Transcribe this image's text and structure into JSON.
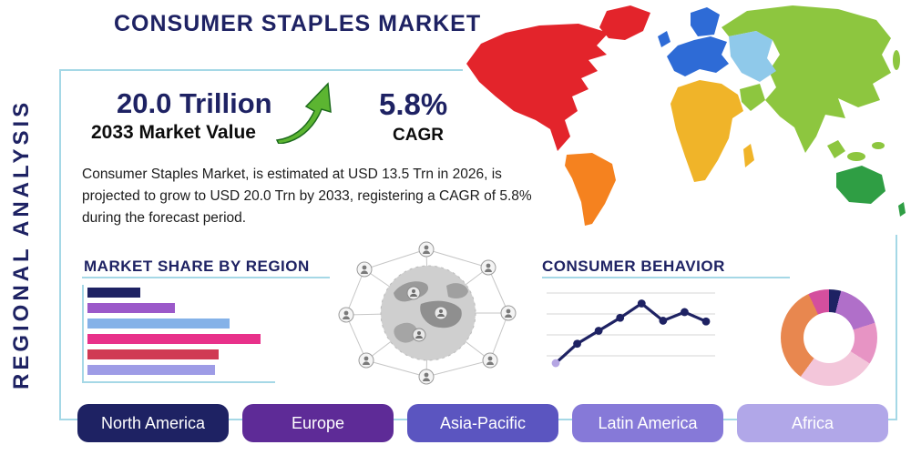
{
  "title": "CONSUMER STAPLES MARKET",
  "vertical_label": "REGIONAL ANALYSIS",
  "colors": {
    "navy": "#1e2263",
    "accent_border": "#a5d8e6",
    "arrow_green": "#5cb531",
    "line_first_point": "#b5a6e3"
  },
  "stats": {
    "market_value": "20.0 Trillion",
    "market_value_label": "2033 Market Value",
    "cagr_value": "5.8%",
    "cagr_label": "CAGR"
  },
  "description": "Consumer Staples Market, is estimated at USD 13.5 Trn in 2026, is projected to grow to USD 20.0 Trn by 2033, registering a CAGR of 5.8% during the forecast period.",
  "sections": {
    "market_share": "MARKET SHARE BY REGION",
    "consumer_behavior": "CONSUMER BEHAVIOR"
  },
  "region_buttons": [
    {
      "label": "North America",
      "color": "#1e2263"
    },
    {
      "label": "Europe",
      "color": "#5e2b97"
    },
    {
      "label": "Asia-Pacific",
      "color": "#5b55c0"
    },
    {
      "label": "Latin America",
      "color": "#8679d8"
    },
    {
      "label": "Africa",
      "color": "#b1a7e8"
    }
  ],
  "map_colors": {
    "north_america": "#e3242b",
    "south_america": "#f5821f",
    "europe": "#2e6bd6",
    "central_asia": "#8fc9ea",
    "asia": "#8dc63f",
    "africa": "#f0b429",
    "australia": "#2f9e44"
  },
  "chart_data": [
    {
      "id": "market-share-by-region",
      "type": "bar",
      "title": "MARKET SHARE BY REGION",
      "orientation": "horizontal",
      "values": [
        29,
        48,
        78,
        95,
        72,
        70
      ],
      "colors": [
        "#1e2263",
        "#9b59c9",
        "#85b2e8",
        "#e8318a",
        "#d03a54",
        "#9e9ce6"
      ],
      "xlim": [
        0,
        100
      ]
    },
    {
      "id": "consumer-behavior-trend",
      "type": "line",
      "title": "CONSUMER BEHAVIOR",
      "x": [
        1,
        2,
        3,
        4,
        5,
        6,
        7,
        8
      ],
      "values": [
        5,
        32,
        50,
        68,
        88,
        64,
        76,
        63
      ],
      "ylim": [
        0,
        100
      ],
      "grid": true
    },
    {
      "id": "regional-share-donut",
      "type": "pie",
      "donut": true,
      "slices": [
        {
          "color": "#1e2263",
          "value": 4
        },
        {
          "color": "#b06fc9",
          "value": 16
        },
        {
          "color": "#e794c4",
          "value": 14
        },
        {
          "color": "#f3c6da",
          "value": 26
        },
        {
          "color": "#e8874f",
          "value": 33
        },
        {
          "color": "#d44f9e",
          "value": 7
        }
      ]
    }
  ]
}
